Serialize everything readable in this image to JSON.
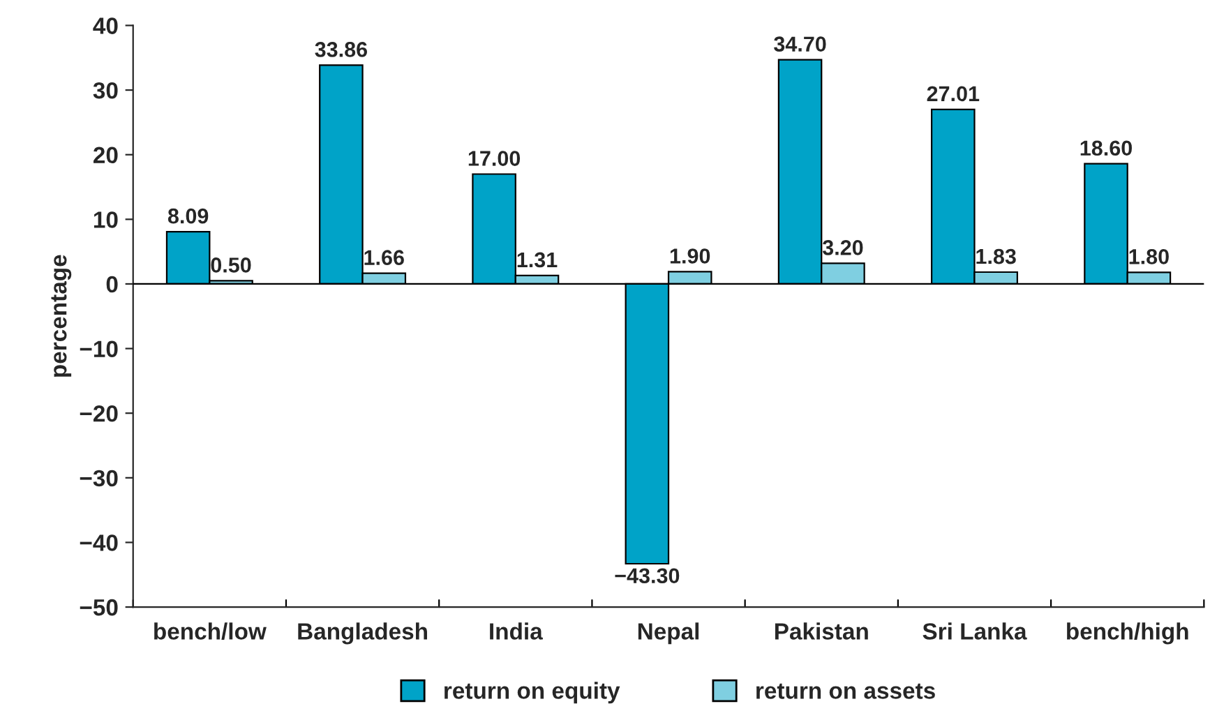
{
  "chart_data": {
    "type": "bar",
    "ylabel": "percentage",
    "categories": [
      "bench/low",
      "Bangladesh",
      "India",
      "Nepal",
      "Pakistan",
      "Sri Lanka",
      "bench/high"
    ],
    "series": [
      {
        "name": "return on equity",
        "color": "#00a3c8",
        "values": [
          8.09,
          33.86,
          17.0,
          -43.3,
          34.7,
          27.01,
          18.6
        ],
        "value_labels": [
          "8.09",
          "33.86",
          "17.00",
          "−43.30",
          "34.70",
          "27.01",
          "18.60"
        ]
      },
      {
        "name": "return on assets",
        "color": "#7fcfe1",
        "values": [
          0.5,
          1.66,
          1.31,
          1.9,
          3.2,
          1.83,
          1.8
        ],
        "value_labels": [
          "0.50",
          "1.66",
          "1.31",
          "1.90",
          "3.20",
          "1.83",
          "1.80"
        ]
      }
    ],
    "ylim": [
      -50,
      40
    ],
    "yticks": [
      {
        "value": -50,
        "label": "−50"
      },
      {
        "value": -40,
        "label": "−40"
      },
      {
        "value": -30,
        "label": "−30"
      },
      {
        "value": -20,
        "label": "−20"
      },
      {
        "value": -10,
        "label": "−10"
      },
      0,
      10,
      20,
      30,
      40
    ],
    "ref_lines": [
      {
        "axis": "y",
        "value": 0,
        "color": "#000000"
      }
    ],
    "grid": false,
    "legend": "bottom"
  }
}
